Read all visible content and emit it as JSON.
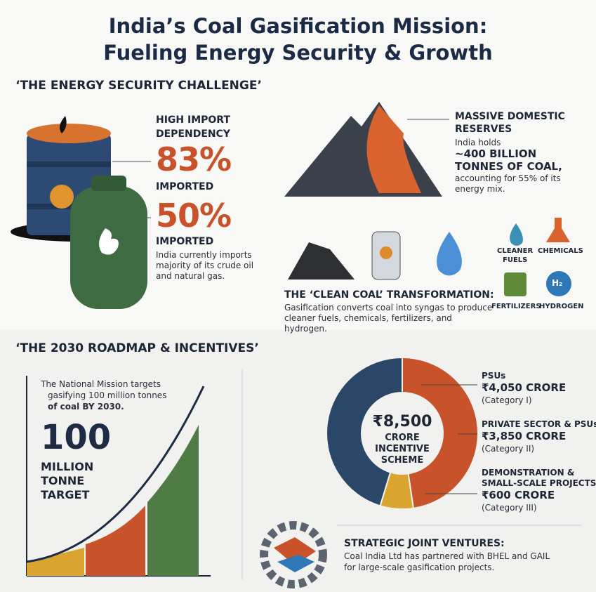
{
  "header": {
    "title_lines": [
      "India’s Coal Gasification Mission:",
      "Fueling Energy Security & Growth"
    ]
  },
  "challenge": {
    "heading": "‘THE ENERGY SECURITY CHALLENGE’",
    "imports": {
      "label_lines": [
        "HIGH IMPORT",
        "DEPENDENCY"
      ],
      "stats": [
        {
          "figure": "83%",
          "label": "IMPORTED"
        },
        {
          "figure": "50%",
          "label": "IMPORTED"
        }
      ],
      "note": "India currently imports majority of its crude oil and natural gas."
    },
    "reserves": {
      "title_lines": [
        "MASSIVE DOMESTIC",
        "RESERVES"
      ],
      "intro": "India holds",
      "highlight_lines": [
        "~400 BILLION",
        "TONNES OF COAL,"
      ],
      "note": "accounting for 55% of its energy mix."
    },
    "clean_coal": {
      "title": "THE ‘CLEAN COAL’ TRANSFORMATION:",
      "note": "Gasification converts coal into syngas to produce cleaner fuels, chemicals, fertilizers, and hydrogen.",
      "products": [
        [
          "CLEANER",
          "FUELS"
        ],
        [
          "CHEMICALS"
        ],
        [
          "FERTILIZERS"
        ],
        [
          "HYDROGEN"
        ]
      ],
      "hydrogen_icon": "H₂"
    }
  },
  "roadmap": {
    "heading": "‘THE 2030 ROADMAP & INCENTIVES’",
    "target_note_lines": [
      "The National Mission targets",
      "gasifying 100 million tonnes",
      "of coal BY 2030."
    ],
    "target_figure": "100",
    "target_label_lines": [
      "MILLION",
      "TONNE",
      "TARGET"
    ],
    "incentive": {
      "center_lines": [
        "₹8,500",
        "CRORE",
        "INCENTIVE",
        "SCHEME"
      ],
      "segments": [
        {
          "name_lines": [
            "PSUs"
          ],
          "value": 4050,
          "amount": "₹4,050 CRORE",
          "category": "(Category I)",
          "color": "#c8532b"
        },
        {
          "name_lines": [
            "PRIVATE SECTOR & PSUs"
          ],
          "value": 3850,
          "amount": "₹3,850 CRORE",
          "category": "(Category II)",
          "color": "#2b4767"
        },
        {
          "name_lines": [
            "DEMONSTRATION &",
            "SMALL-SCALE PROJECTS"
          ],
          "value": 600,
          "amount": "₹600 CRORE",
          "category": "(Category III)",
          "color": "#d9a52f"
        }
      ]
    },
    "ventures": {
      "title": "STRATEGIC JOINT VENTURES:",
      "note_lines": [
        "Coal India Ltd has partnered with BHEL and GAIL",
        "for large-scale gasification projects."
      ]
    }
  }
}
